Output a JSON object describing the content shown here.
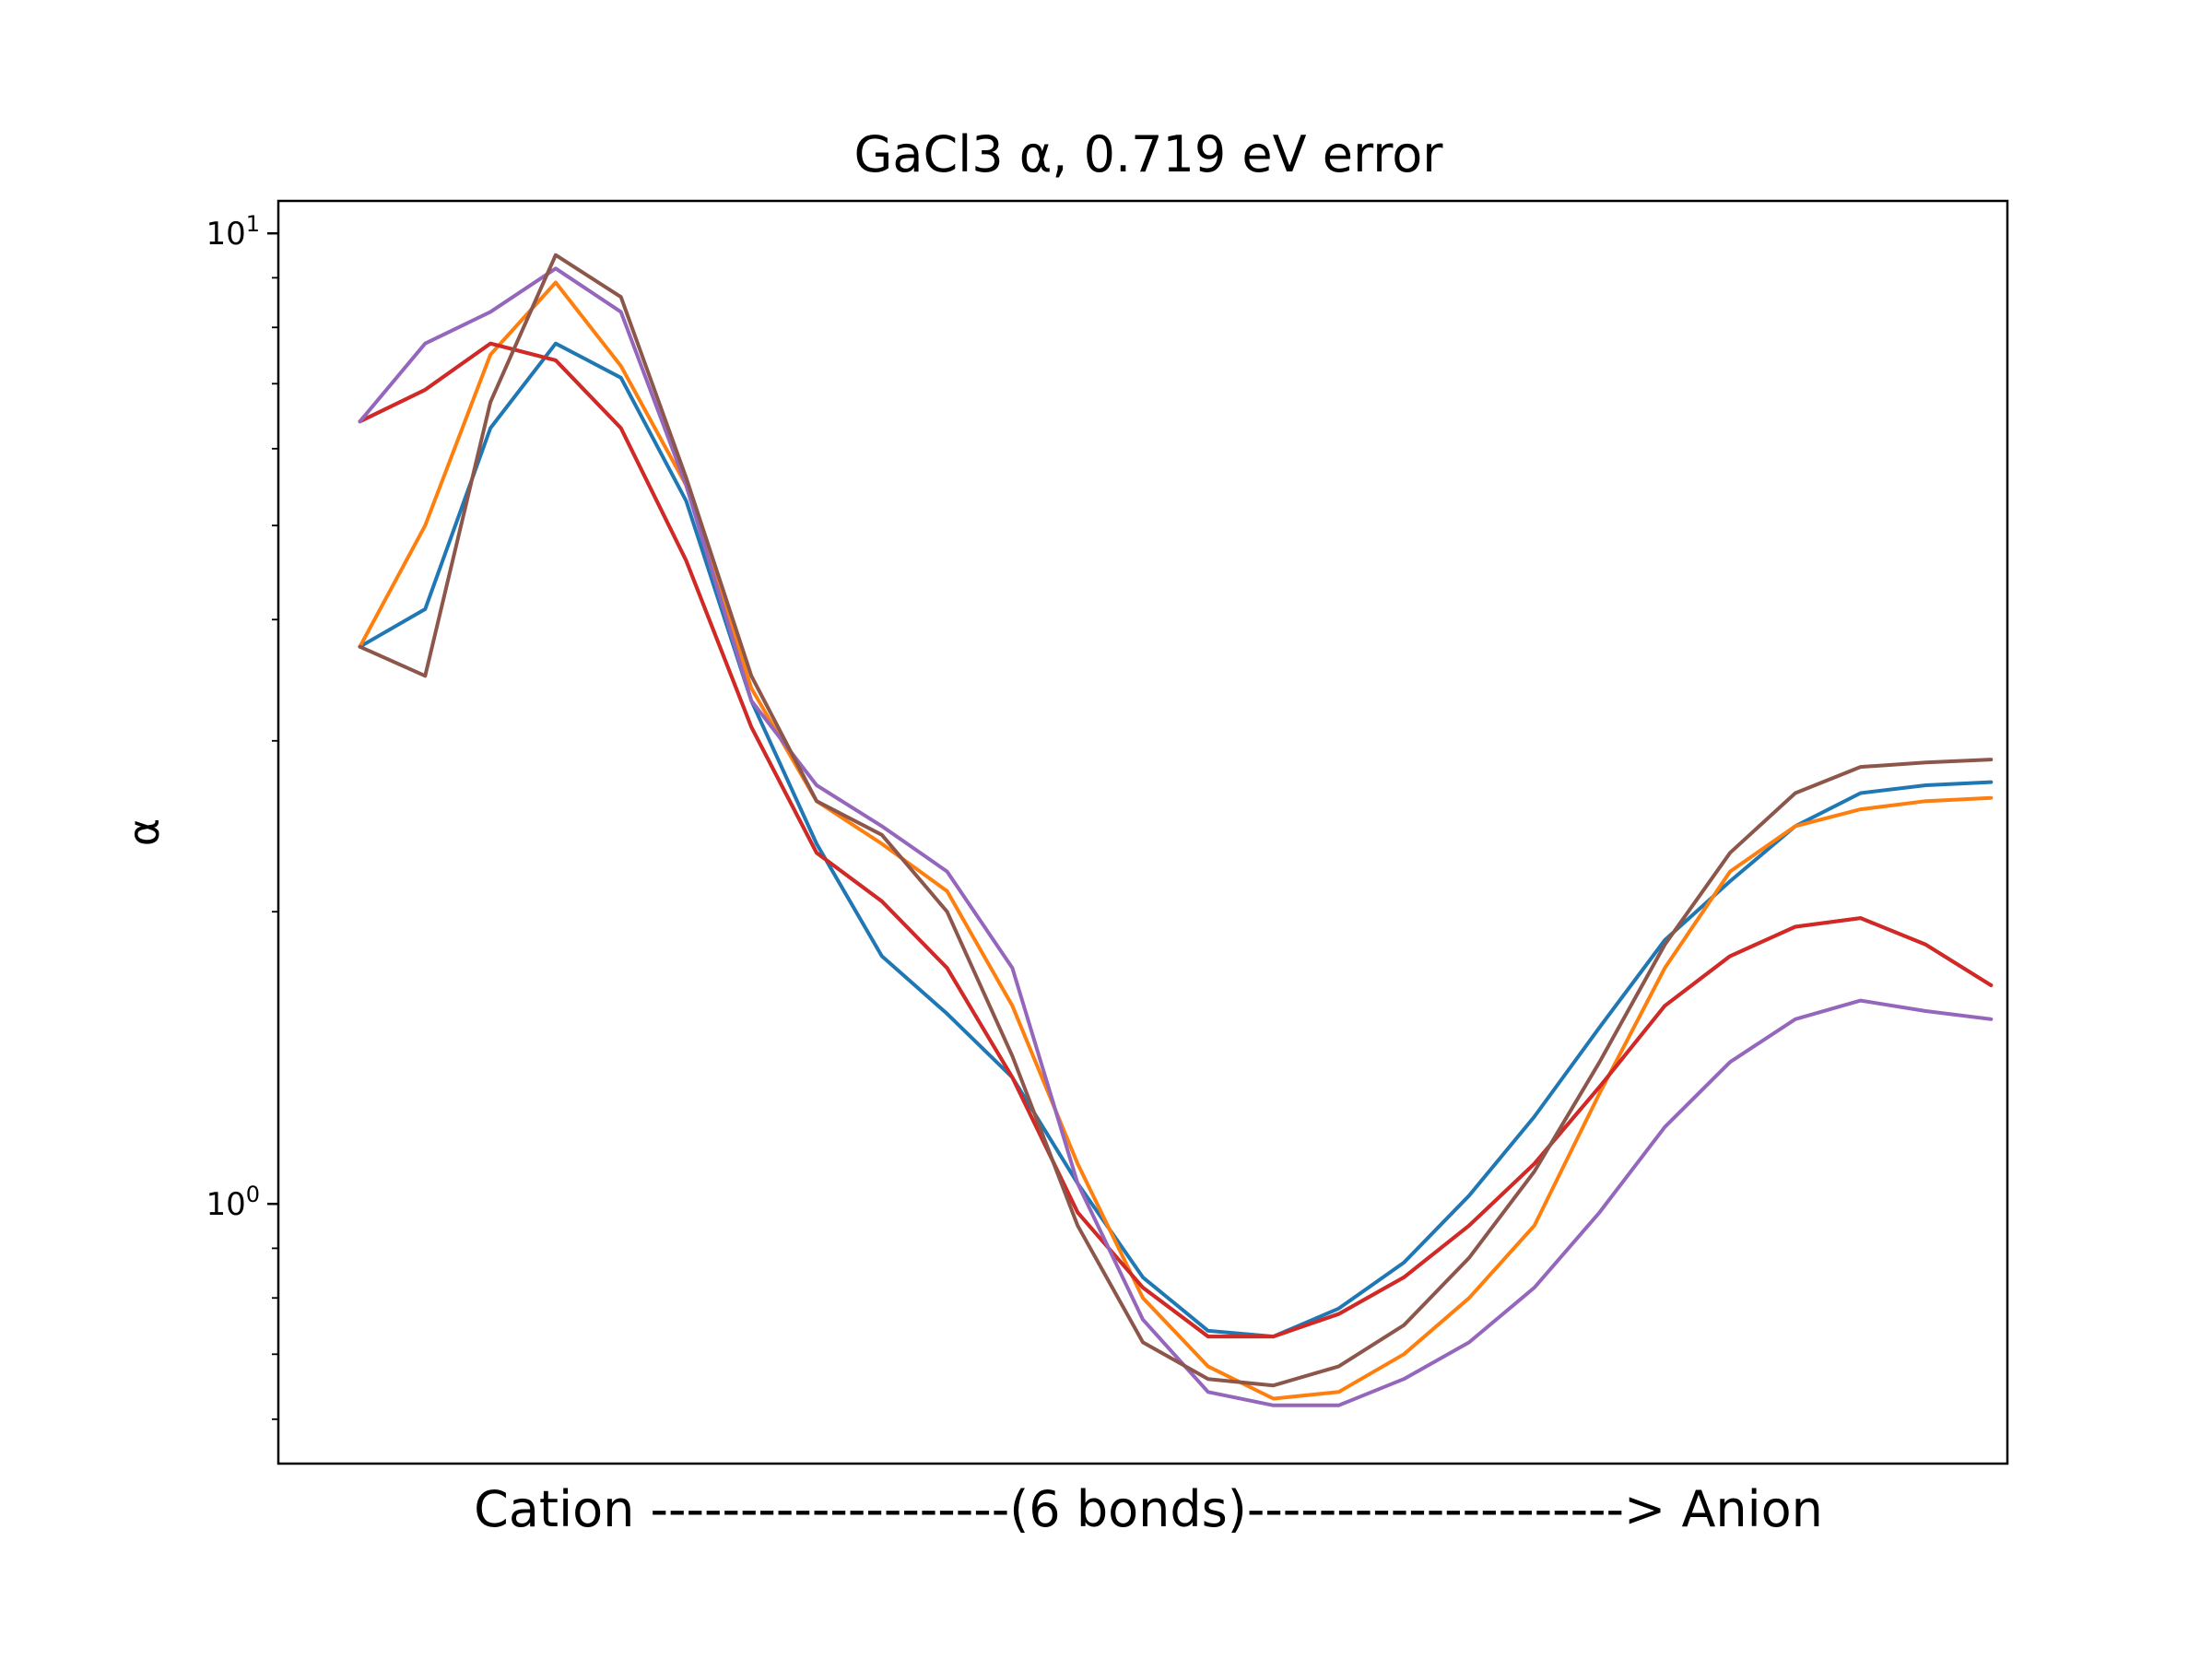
{
  "chart_data": {
    "type": "line",
    "title": "GaCl3 α, 0.719 eV error",
    "xlabel": "Cation --------------------(6 bonds)---------------------> Anion",
    "ylabel": "α",
    "yscale": "log",
    "ylim": [
      0.54,
      10.8
    ],
    "xlim": [
      -5,
      101
    ],
    "y_ticks": [
      {
        "value": 1,
        "base": "10",
        "exp": "0"
      },
      {
        "value": 10,
        "base": "10",
        "exp": "1"
      }
    ],
    "x_ticks": [],
    "grid": false,
    "legend": "none",
    "x": [
      0,
      4,
      8,
      12,
      16,
      20,
      24,
      28,
      32,
      36,
      40,
      44,
      48,
      52,
      56,
      60,
      64,
      68,
      72,
      76,
      80,
      84,
      88,
      92,
      96,
      100
    ],
    "series": [
      {
        "color": "#1f77b4",
        "values": [
          3.75,
          4.1,
          6.3,
          7.7,
          7.1,
          5.3,
          3.3,
          2.35,
          1.8,
          1.57,
          1.35,
          1.05,
          0.84,
          0.74,
          0.73,
          0.78,
          0.87,
          1.02,
          1.23,
          1.52,
          1.87,
          2.15,
          2.45,
          2.65,
          2.7,
          2.72
        ]
      },
      {
        "color": "#ff7f0e",
        "values": [
          3.75,
          5.0,
          7.5,
          8.9,
          7.3,
          5.5,
          3.4,
          2.6,
          2.35,
          2.1,
          1.6,
          1.1,
          0.8,
          0.68,
          0.63,
          0.64,
          0.7,
          0.8,
          0.95,
          1.3,
          1.75,
          2.2,
          2.45,
          2.55,
          2.6,
          2.62
        ]
      },
      {
        "color": "#2ca02c",
        "values": [
          6.4,
          6.9,
          7.7,
          7.4,
          6.3,
          4.6,
          3.1,
          2.3,
          2.05,
          1.75,
          1.35,
          0.98,
          0.82,
          0.73,
          0.73,
          0.77,
          0.84,
          0.95,
          1.1,
          1.32,
          1.6,
          1.8,
          1.93,
          1.97,
          1.85,
          1.68
        ]
      },
      {
        "color": "#d62728",
        "values": [
          6.4,
          6.9,
          7.7,
          7.4,
          6.3,
          4.6,
          3.1,
          2.3,
          2.05,
          1.75,
          1.35,
          0.98,
          0.82,
          0.73,
          0.73,
          0.77,
          0.84,
          0.95,
          1.1,
          1.32,
          1.6,
          1.8,
          1.93,
          1.97,
          1.85,
          1.68
        ]
      },
      {
        "color": "#9467bd",
        "values": [
          6.4,
          7.7,
          8.3,
          9.2,
          8.3,
          5.5,
          3.3,
          2.7,
          2.45,
          2.2,
          1.75,
          1.05,
          0.76,
          0.64,
          0.62,
          0.62,
          0.66,
          0.72,
          0.82,
          0.98,
          1.2,
          1.4,
          1.55,
          1.62,
          1.58,
          1.55
        ]
      },
      {
        "color": "#8c564b",
        "values": [
          3.75,
          3.5,
          6.7,
          9.5,
          8.6,
          5.6,
          3.5,
          2.6,
          2.4,
          2.0,
          1.42,
          0.95,
          0.72,
          0.66,
          0.65,
          0.68,
          0.75,
          0.88,
          1.08,
          1.4,
          1.85,
          2.3,
          2.65,
          2.82,
          2.85,
          2.87
        ]
      }
    ]
  }
}
